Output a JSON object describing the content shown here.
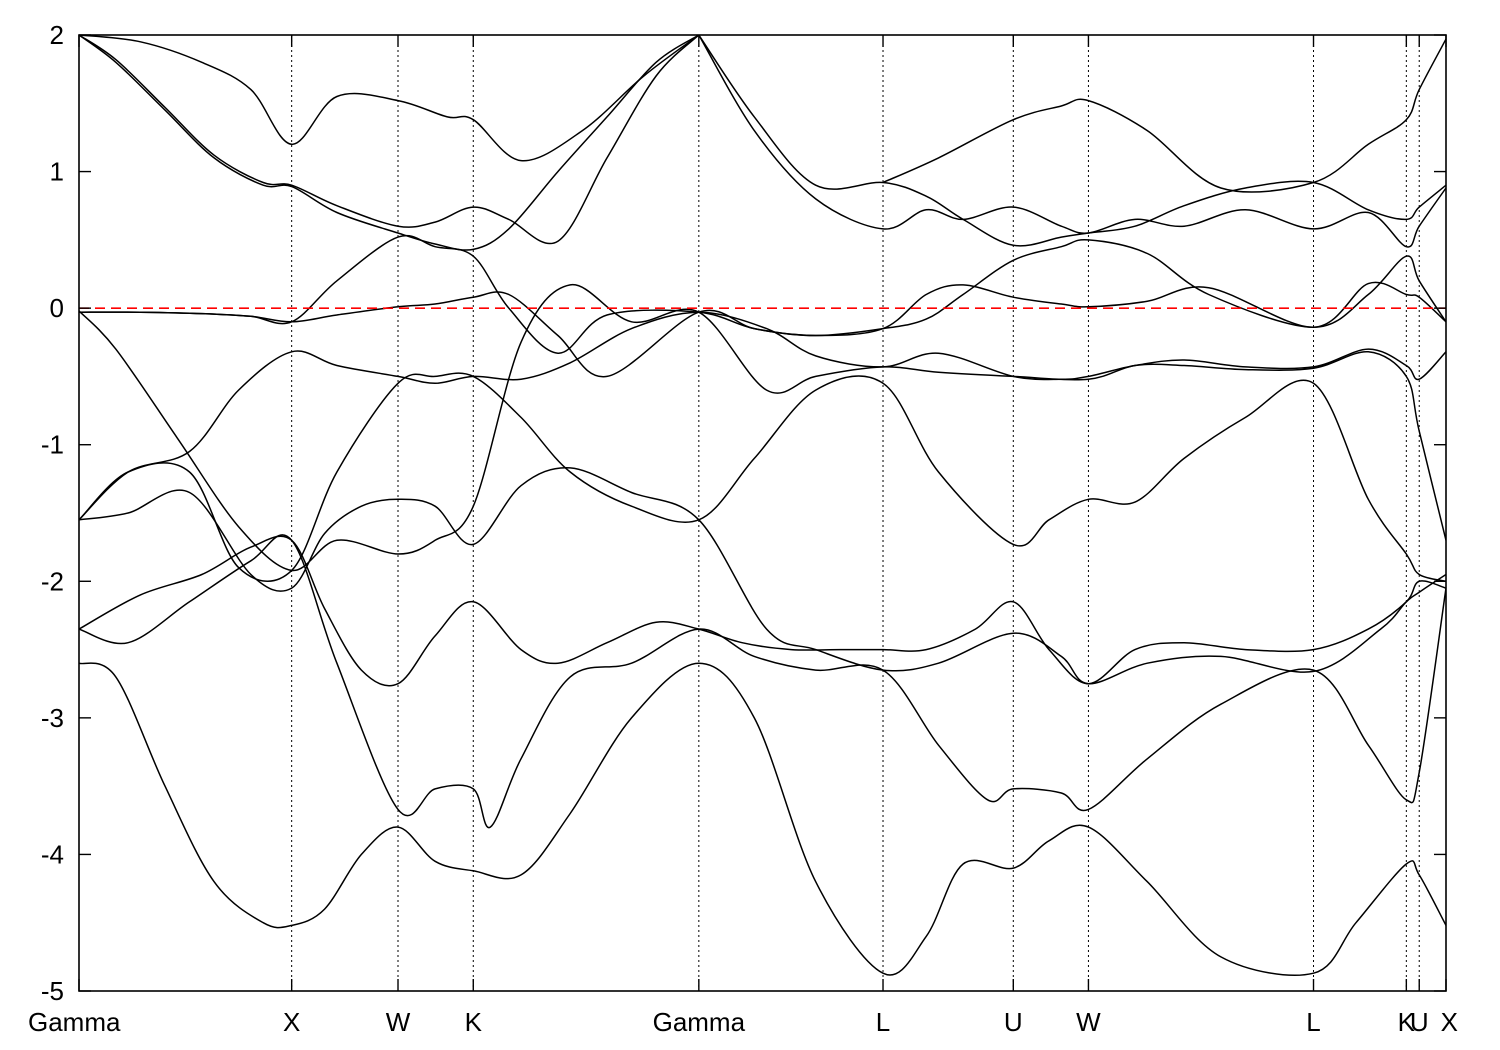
{
  "chart_data": {
    "type": "line",
    "title": "",
    "xlabel": "",
    "ylabel": "",
    "ylim": [
      -5,
      2
    ],
    "xlim": [
      0,
      11.133
    ],
    "grid": false,
    "fermi_level": 0,
    "colors": {
      "bands": "#000000",
      "fermi": "#ff0000",
      "kpath": "#000000"
    },
    "y_ticks": [
      {
        "value": -5,
        "label": "-5"
      },
      {
        "value": -4,
        "label": "-4"
      },
      {
        "value": -3,
        "label": "-3"
      },
      {
        "value": -2,
        "label": "-2"
      },
      {
        "value": -1,
        "label": "-1"
      },
      {
        "value": 0,
        "label": "0"
      },
      {
        "value": 1,
        "label": "1"
      },
      {
        "value": 2,
        "label": "2"
      }
    ],
    "x_ticks": [
      {
        "label": "Gamma",
        "pos": 0.0
      },
      {
        "label": "X",
        "pos": 1.732
      },
      {
        "label": "W",
        "pos": 2.598
      },
      {
        "label": "K",
        "pos": 3.211
      },
      {
        "label": "Gamma",
        "pos": 5.048
      },
      {
        "label": "L",
        "pos": 6.548
      },
      {
        "label": "U",
        "pos": 7.609
      },
      {
        "label": "W",
        "pos": 8.221
      },
      {
        "label": "L",
        "pos": 10.054
      },
      {
        "label": "K",
        "pos": 10.81
      },
      {
        "label": "U",
        "pos": 10.915
      },
      {
        "label": "X",
        "pos": 11.133
      }
    ],
    "series": [
      {
        "x": [
          0,
          0.3,
          0.7,
          1.1,
          1.5,
          1.732,
          2.0,
          2.3,
          2.598,
          2.9,
          3.211,
          3.6,
          4.0,
          4.5,
          5.048,
          5.5,
          6.0,
          6.548,
          6.9,
          7.2,
          7.609,
          7.9,
          8.221,
          8.7,
          9.3,
          10.054,
          10.4,
          10.81,
          10.915,
          11.133
        ],
        "y": [
          -2.6,
          -2.7,
          -3.5,
          -4.2,
          -4.5,
          -4.52,
          -4.4,
          -4.0,
          -3.8,
          -4.05,
          -4.12,
          -4.15,
          -3.7,
          -3.0,
          -2.6,
          -3.0,
          -4.2,
          -4.87,
          -4.6,
          -4.07,
          -4.1,
          -3.9,
          -3.8,
          -4.2,
          -4.75,
          -4.87,
          -4.5,
          -4.07,
          -4.15,
          -4.52
        ]
      },
      {
        "x": [
          0,
          0.4,
          0.9,
          1.4,
          1.732,
          2.1,
          2.598,
          2.9,
          3.211,
          3.35,
          3.6,
          4.0,
          4.5,
          5.048,
          5.5,
          6.0,
          6.548,
          7.0,
          7.4,
          7.609,
          8.0,
          8.221,
          8.7,
          9.3,
          10.054,
          10.5,
          10.81,
          10.915,
          11.133
        ],
        "y": [
          -2.35,
          -2.45,
          -2.15,
          -1.85,
          -1.7,
          -2.6,
          -3.67,
          -3.52,
          -3.52,
          -3.8,
          -3.3,
          -2.7,
          -2.6,
          -2.35,
          -2.55,
          -2.65,
          -2.65,
          -3.2,
          -3.6,
          -3.52,
          -3.55,
          -3.67,
          -3.3,
          -2.9,
          -2.65,
          -3.2,
          -3.6,
          -3.4,
          -2.05
        ]
      },
      {
        "x": [
          0,
          0.5,
          1.0,
          1.4,
          1.732,
          2.0,
          2.3,
          2.598,
          2.9,
          3.211,
          3.6,
          3.9,
          4.3,
          4.7,
          5.048,
          5.4,
          5.8,
          6.2,
          6.548,
          6.9,
          7.3,
          7.609,
          7.9,
          8.221,
          8.6,
          9.0,
          9.5,
          10.054,
          10.5,
          10.81,
          10.915,
          11.133
        ],
        "y": [
          -2.35,
          -2.1,
          -1.95,
          -1.75,
          -1.7,
          -2.2,
          -2.65,
          -2.75,
          -2.4,
          -2.15,
          -2.5,
          -2.6,
          -2.45,
          -2.3,
          -2.35,
          -2.45,
          -2.5,
          -2.5,
          -2.5,
          -2.5,
          -2.35,
          -2.15,
          -2.5,
          -2.75,
          -2.5,
          -2.45,
          -2.5,
          -2.5,
          -2.35,
          -2.15,
          -2.0,
          -2.05
        ]
      },
      {
        "x": [
          0,
          0.4,
          0.9,
          1.4,
          1.732,
          2.0,
          2.3,
          2.598,
          2.9,
          3.211,
          3.6,
          4.0,
          4.5,
          5.048,
          5.6,
          6.0,
          6.548,
          7.0,
          7.609,
          8.0,
          8.221,
          8.7,
          9.3,
          10.054,
          10.6,
          10.81,
          10.915,
          11.133
        ],
        "y": [
          -1.55,
          -1.5,
          -1.35,
          -1.95,
          -2.05,
          -1.65,
          -1.45,
          -1.4,
          -1.45,
          -1.73,
          -1.3,
          -1.17,
          -1.35,
          -1.55,
          -2.35,
          -2.5,
          -2.65,
          -2.6,
          -2.38,
          -2.55,
          -2.75,
          -2.6,
          -2.55,
          -2.66,
          -2.35,
          -2.15,
          -2.08,
          -1.95
        ]
      },
      {
        "x": [
          0,
          0.4,
          0.9,
          1.3,
          1.732,
          2.1,
          2.598,
          2.9,
          3.211,
          3.6,
          4.0,
          4.5,
          5.048,
          5.5,
          6.0,
          6.548,
          7.0,
          7.609,
          7.9,
          8.221,
          8.6,
          9.0,
          9.5,
          10.054,
          10.5,
          10.81,
          10.915,
          11.133
        ],
        "y": [
          -1.55,
          -1.2,
          -1.2,
          -1.9,
          -1.92,
          -1.2,
          -0.55,
          -0.5,
          -0.5,
          -0.8,
          -1.2,
          -1.45,
          -1.55,
          -1.1,
          -0.6,
          -0.55,
          -1.2,
          -1.73,
          -1.55,
          -1.4,
          -1.42,
          -1.1,
          -0.8,
          -0.55,
          -1.4,
          -1.8,
          -1.95,
          -2.0
        ]
      },
      {
        "x": [
          0,
          0.3,
          0.8,
          1.3,
          1.732,
          2.1,
          2.598,
          2.9,
          3.211,
          3.6,
          4.0,
          4.5,
          5.048,
          5.6,
          6.0,
          6.548,
          7.0,
          7.609,
          8.221,
          8.6,
          9.0,
          9.5,
          10.054,
          10.5,
          10.81,
          10.915,
          11.133
        ],
        "y": [
          -0.02,
          -0.3,
          -0.95,
          -1.6,
          -1.92,
          -1.7,
          -1.8,
          -1.7,
          -1.45,
          -0.25,
          0.17,
          -0.1,
          -0.03,
          -0.6,
          -0.5,
          -0.43,
          -0.47,
          -0.5,
          -0.52,
          -0.42,
          -0.42,
          -0.45,
          -0.44,
          -0.32,
          -0.5,
          -0.9,
          -1.7
        ]
      },
      {
        "x": [
          0,
          0.4,
          0.9,
          1.3,
          1.732,
          2.1,
          2.598,
          2.9,
          3.211,
          3.6,
          4.0,
          4.5,
          5.048,
          5.6,
          6.0,
          6.548,
          7.0,
          7.609,
          8.0,
          8.221,
          8.6,
          9.0,
          9.5,
          10.054,
          10.5,
          10.81,
          10.915,
          11.133
        ],
        "y": [
          -1.55,
          -1.2,
          -1.05,
          -0.6,
          -0.32,
          -0.42,
          -0.5,
          -0.55,
          -0.5,
          -0.52,
          -0.4,
          -0.15,
          -0.03,
          -0.15,
          -0.35,
          -0.43,
          -0.33,
          -0.5,
          -0.52,
          -0.5,
          -0.42,
          -0.38,
          -0.43,
          -0.43,
          -0.3,
          -0.42,
          -0.52,
          -0.32
        ]
      },
      {
        "x": [
          0,
          0.5,
          1.0,
          1.4,
          1.732,
          2.1,
          2.598,
          2.9,
          3.211,
          3.5,
          3.9,
          4.3,
          5.048,
          5.5,
          6.0,
          6.548,
          6.9,
          7.2,
          7.609,
          8.0,
          8.221,
          8.7,
          9.2,
          10.054,
          10.5,
          10.81,
          10.915,
          11.133
        ],
        "y": [
          -0.03,
          -0.03,
          -0.04,
          -0.06,
          -0.1,
          -0.05,
          0.01,
          0.03,
          0.08,
          0.1,
          -0.2,
          -0.5,
          -0.03,
          -0.15,
          -0.2,
          -0.15,
          0.1,
          0.17,
          0.08,
          0.03,
          0.01,
          0.05,
          0.15,
          -0.14,
          0.18,
          0.1,
          0.08,
          -0.1
        ]
      },
      {
        "x": [
          0,
          0.5,
          1.0,
          1.4,
          1.732,
          2.1,
          2.598,
          2.9,
          3.211,
          3.5,
          3.9,
          4.3,
          5.048,
          5.5,
          6.0,
          6.548,
          6.9,
          7.2,
          7.609,
          8.0,
          8.221,
          8.7,
          9.2,
          10.054,
          10.5,
          10.81,
          10.915,
          11.133
        ],
        "y": [
          -0.03,
          -0.03,
          -0.04,
          -0.06,
          -0.1,
          0.2,
          0.52,
          0.45,
          0.38,
          0.0,
          -0.33,
          -0.05,
          -0.03,
          -0.15,
          -0.2,
          -0.15,
          -0.08,
          0.1,
          0.35,
          0.45,
          0.5,
          0.4,
          0.1,
          -0.14,
          0.1,
          0.38,
          0.2,
          -0.1
        ]
      },
      {
        "x": [
          0,
          0.3,
          0.7,
          1.1,
          1.5,
          1.732,
          2.1,
          2.598,
          2.9,
          3.211,
          3.5,
          3.9,
          4.3,
          4.7,
          5.048
        ],
        "y": [
          2.0,
          1.8,
          1.45,
          1.1,
          0.9,
          0.89,
          0.7,
          0.55,
          0.47,
          0.43,
          0.58,
          1.0,
          1.4,
          1.8,
          2.0
        ]
      },
      {
        "x": [
          0,
          0.3,
          0.7,
          1.1,
          1.5,
          1.732,
          2.1,
          2.598,
          2.9,
          3.211,
          3.5,
          3.9,
          4.3,
          4.7,
          5.048
        ],
        "y": [
          2.0,
          1.82,
          1.47,
          1.12,
          0.92,
          0.9,
          0.75,
          0.6,
          0.63,
          0.74,
          0.65,
          0.49,
          1.1,
          1.7,
          2.0
        ]
      },
      {
        "x": [
          5.048,
          5.5,
          6.0,
          6.548,
          6.9,
          7.2,
          7.609,
          8.0,
          8.221,
          8.6,
          9.0,
          9.5,
          10.054,
          10.5,
          10.81,
          10.915,
          11.133
        ],
        "y": [
          2.0,
          1.4,
          0.9,
          0.92,
          0.82,
          0.65,
          0.46,
          0.52,
          0.55,
          0.6,
          0.75,
          0.88,
          0.92,
          0.72,
          0.65,
          0.74,
          0.9
        ]
      },
      {
        "x": [
          5.048,
          5.5,
          6.0,
          6.548,
          6.9,
          7.2,
          7.609,
          8.0,
          8.221,
          8.6,
          9.0,
          9.5,
          10.054,
          10.5,
          10.81,
          10.915,
          11.133
        ],
        "y": [
          2.0,
          1.3,
          0.8,
          0.58,
          0.72,
          0.65,
          0.74,
          0.6,
          0.55,
          0.65,
          0.6,
          0.72,
          0.58,
          0.7,
          0.45,
          0.6,
          0.88
        ]
      },
      {
        "x": [
          0,
          0.5,
          1.0,
          1.4,
          1.732,
          2.1,
          2.598,
          3.0,
          3.211,
          3.6,
          4.1,
          4.6,
          5.048
        ],
        "y": [
          2.0,
          1.95,
          1.8,
          1.6,
          1.2,
          1.55,
          1.52,
          1.4,
          1.38,
          1.08,
          1.3,
          1.7,
          2.0
        ]
      },
      {
        "x": [
          6.548,
          7.0,
          7.609,
          8.0,
          8.221,
          8.7,
          9.3,
          10.054,
          10.5,
          10.81,
          10.915,
          11.133
        ],
        "y": [
          0.92,
          1.1,
          1.38,
          1.48,
          1.52,
          1.3,
          0.88,
          0.92,
          1.2,
          1.38,
          1.6,
          1.97
        ]
      }
    ]
  }
}
